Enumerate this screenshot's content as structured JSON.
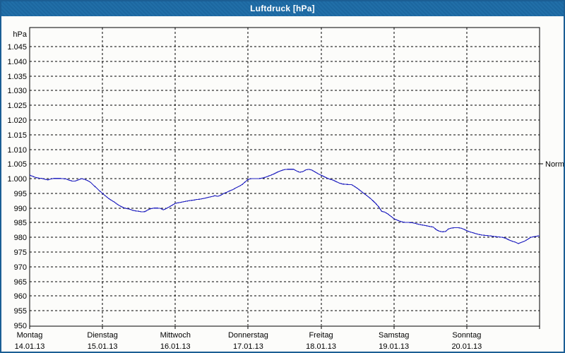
{
  "window": {
    "title": "Luftdruck [hPa]",
    "title_bar_color": "#1e6ca6",
    "border_color": "#1b5e94",
    "background_color": "#fcfcfa"
  },
  "chart_data": {
    "type": "line",
    "title": "Luftdruck [hPa]",
    "grid": "dashed",
    "legend_position": "none",
    "y_axis": {
      "unit_label": "hPa",
      "min": 950,
      "max": 1051,
      "tick_step": 5,
      "tick_values": [
        1045,
        1040,
        1035,
        1030,
        1025,
        1020,
        1015,
        1010,
        1005,
        1000,
        995,
        990,
        985,
        980,
        975,
        970,
        965,
        960,
        955,
        950
      ],
      "tick_labels": [
        "1.045",
        "1.040",
        "1.035",
        "1.030",
        "1.025",
        "1.020",
        "1.015",
        "1.010",
        "1.005",
        "1.000",
        "995",
        "990",
        "985",
        "980",
        "975",
        "970",
        "965",
        "960",
        "955",
        "950"
      ]
    },
    "x_axis": {
      "days": [
        {
          "weekday": "Montag",
          "date": "14.01.13"
        },
        {
          "weekday": "Dienstag",
          "date": "15.01.13"
        },
        {
          "weekday": "Mittwoch",
          "date": "16.01.13"
        },
        {
          "weekday": "Donnerstag",
          "date": "17.01.13"
        },
        {
          "weekday": "Freitag",
          "date": "18.01.13"
        },
        {
          "weekday": "Samstag",
          "date": "19.01.13"
        },
        {
          "weekday": "Sonntag",
          "date": "20.01.13"
        }
      ],
      "hours_per_day": 24
    },
    "annotation": {
      "label": "Normal",
      "value": 1005
    },
    "series": [
      {
        "name": "Luftdruck",
        "unit": "hPa",
        "color": "#2222c0",
        "sample_interval_hours": 1,
        "values": [
          1001.2,
          1000.8,
          1000.4,
          1000.2,
          1000.1,
          999.8,
          999.6,
          999.9,
          1000.1,
          1000.1,
          1000.1,
          1000.0,
          999.9,
          999.5,
          999.2,
          999.2,
          999.6,
          1000.0,
          999.8,
          999.4,
          998.8,
          997.8,
          996.9,
          995.9,
          995.0,
          994.1,
          993.3,
          992.6,
          992.0,
          991.2,
          990.6,
          990.1,
          989.8,
          989.6,
          989.2,
          989.0,
          988.9,
          988.7,
          988.8,
          989.4,
          989.8,
          990.0,
          990.0,
          989.9,
          989.4,
          989.8,
          990.4,
          991.0,
          991.6,
          991.8,
          992.0,
          992.2,
          992.4,
          992.6,
          992.7,
          992.9,
          993.0,
          993.2,
          993.4,
          993.7,
          993.9,
          994.2,
          994.0,
          994.4,
          995.0,
          995.4,
          995.9,
          996.3,
          996.9,
          997.4,
          998.0,
          998.9,
          999.8,
          1000.0,
          1000.0,
          1000.0,
          1000.1,
          1000.3,
          1000.6,
          1001.0,
          1001.4,
          1001.9,
          1002.4,
          1002.8,
          1003.1,
          1003.2,
          1003.2,
          1003.2,
          1002.6,
          1002.2,
          1002.4,
          1003.0,
          1003.2,
          1002.9,
          1002.3,
          1001.7,
          1001.2,
          1000.7,
          1000.2,
          999.8,
          999.5,
          999.0,
          998.5,
          998.2,
          998.1,
          998.0,
          998.0,
          997.4,
          996.7,
          995.9,
          995.1,
          994.3,
          993.5,
          992.6,
          991.6,
          990.4,
          988.9,
          988.6,
          988.0,
          987.2,
          986.4,
          985.9,
          985.5,
          985.2,
          985.1,
          985.1,
          985.0,
          984.8,
          984.5,
          984.3,
          984.1,
          983.9,
          983.7,
          983.5,
          982.6,
          982.1,
          981.9,
          982.0,
          982.9,
          983.2,
          983.3,
          983.3,
          983.2,
          982.8,
          982.3,
          981.9,
          981.6,
          981.3,
          981.0,
          980.8,
          980.7,
          980.6,
          980.5,
          980.3,
          980.2,
          980.1,
          980.0,
          979.6,
          979.1,
          978.7,
          978.4,
          977.9,
          978.3,
          978.7,
          979.3,
          980.0,
          980.2,
          980.4,
          980.6
        ]
      }
    ]
  }
}
